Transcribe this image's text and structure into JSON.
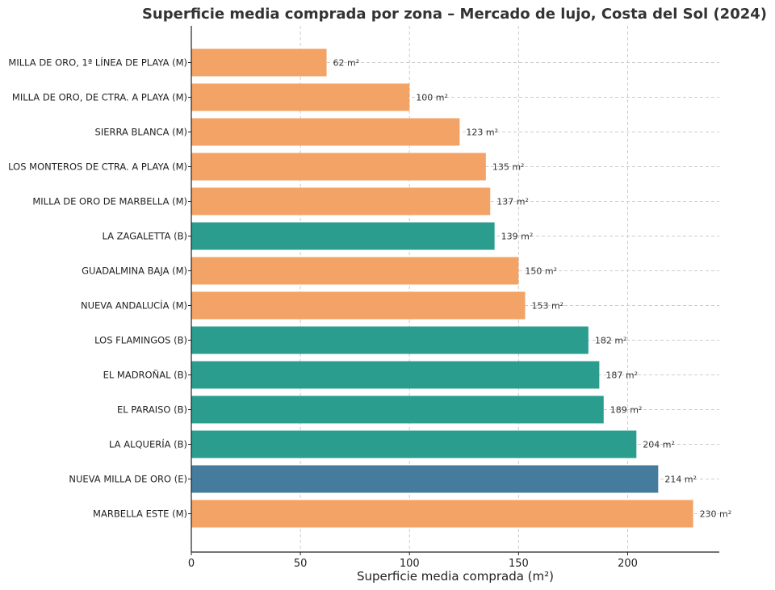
{
  "chart_data": {
    "type": "bar",
    "orientation": "horizontal",
    "title": "Superficie media comprada por zona – Mercado de lujo, Costa del Sol (2024)",
    "xlabel": "Superficie media comprada (m²)",
    "ylabel": "",
    "xlim": [
      0,
      242
    ],
    "xticks": [
      0,
      50,
      100,
      150,
      200
    ],
    "grid": true,
    "value_suffix": " m²",
    "colors": {
      "M": "#f2a365",
      "B": "#2a9d8f",
      "E": "#457b9d"
    },
    "categories": [
      "MILLA DE ORO, 1ª LÍNEA DE PLAYA (M)",
      "MILLA DE ORO, DE CTRA. A PLAYA (M)",
      "SIERRA BLANCA (M)",
      "LOS MONTEROS DE CTRA. A PLAYA (M)",
      "MILLA DE ORO DE MARBELLA (M)",
      "LA ZAGALETTA (B)",
      "GUADALMINA BAJA (M)",
      "NUEVA ANDALUCÍA (M)",
      "LOS FLAMINGOS (B)",
      "EL MADROÑAL (B)",
      "EL PARAISO (B)",
      "LA ALQUERÍA (B)",
      "NUEVA MILLA DE ORO (E)",
      "MARBELLA ESTE (M)"
    ],
    "values": [
      62,
      100,
      123,
      135,
      137,
      139,
      150,
      153,
      182,
      187,
      189,
      204,
      214,
      230
    ],
    "groups": [
      "M",
      "M",
      "M",
      "M",
      "M",
      "B",
      "M",
      "M",
      "B",
      "B",
      "B",
      "B",
      "E",
      "M"
    ]
  }
}
